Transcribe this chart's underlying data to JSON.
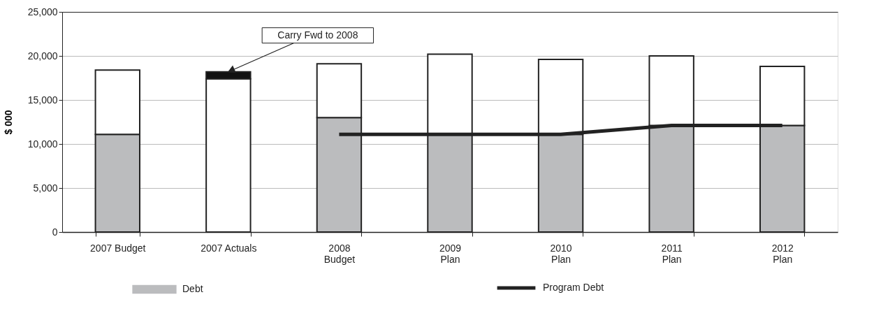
{
  "chart_data": {
    "type": "bar",
    "stacked": true,
    "ylabel": "$ 000",
    "categories": [
      "2007 Budget",
      "2007 Actuals",
      "2008\nBudget",
      "2009\nPlan",
      "2010\nPlan",
      "2011\nPlan",
      "2012\nPlan"
    ],
    "series": [
      {
        "name": "Debt",
        "color": "#bbbcbe",
        "values": [
          11100,
          0,
          13000,
          11100,
          11100,
          12100,
          12100
        ]
      },
      {
        "color": "#ffffff",
        "values": [
          7300,
          17400,
          6100,
          9100,
          8500,
          7900,
          6700
        ]
      },
      {
        "color": "#111111",
        "values": [
          null,
          800,
          null,
          null,
          null,
          null,
          null
        ]
      },
      {
        "name": "Program Debt",
        "type": "line",
        "color": "#222222",
        "values": [
          null,
          null,
          11100,
          11100,
          11100,
          12100,
          12100
        ]
      }
    ],
    "ylim": [
      0,
      25000
    ],
    "yticks": [
      {
        "value": 0,
        "label": "0"
      },
      {
        "value": 5000,
        "label": "5,000"
      },
      {
        "value": 10000,
        "label": "10,000"
      },
      {
        "value": 15000,
        "label": "15,000"
      },
      {
        "value": 20000,
        "label": "20,000"
      },
      {
        "value": 25000,
        "label": "25,000"
      }
    ],
    "grid": "y",
    "legend": "bottom",
    "annotations": [
      {
        "text": "Carry Fwd to 2008",
        "x": "2007 Actuals",
        "y": 18200
      }
    ]
  }
}
